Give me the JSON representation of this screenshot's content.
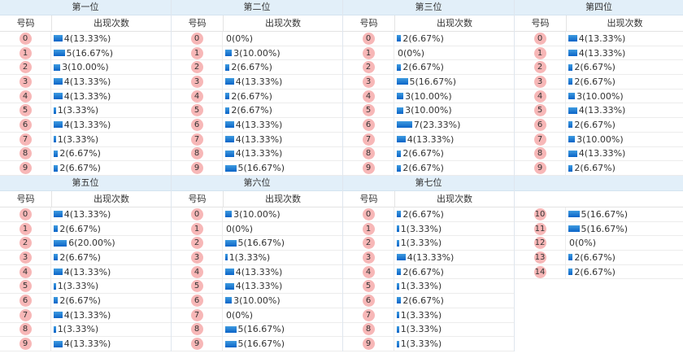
{
  "header": {
    "num_label": "号码",
    "count_label": "出现次数"
  },
  "colors": {
    "ball": "#f7b7b7",
    "bar": "#0a63c7",
    "title_bg": "#e2eff9"
  },
  "panels": [
    {
      "title": "第一位",
      "rows": [
        {
          "num": "0",
          "count": 4,
          "pct": 13.33,
          "text": "4(13.33%)"
        },
        {
          "num": "1",
          "count": 5,
          "pct": 16.67,
          "text": "5(16.67%)"
        },
        {
          "num": "2",
          "count": 3,
          "pct": 10.0,
          "text": "3(10.00%)"
        },
        {
          "num": "3",
          "count": 4,
          "pct": 13.33,
          "text": "4(13.33%)"
        },
        {
          "num": "4",
          "count": 4,
          "pct": 13.33,
          "text": "4(13.33%)"
        },
        {
          "num": "5",
          "count": 1,
          "pct": 3.33,
          "text": "1(3.33%)"
        },
        {
          "num": "6",
          "count": 4,
          "pct": 13.33,
          "text": "4(13.33%)"
        },
        {
          "num": "7",
          "count": 1,
          "pct": 3.33,
          "text": "1(3.33%)"
        },
        {
          "num": "8",
          "count": 2,
          "pct": 6.67,
          "text": "2(6.67%)"
        },
        {
          "num": "9",
          "count": 2,
          "pct": 6.67,
          "text": "2(6.67%)"
        }
      ]
    },
    {
      "title": "第二位",
      "rows": [
        {
          "num": "0",
          "count": 0,
          "pct": 0,
          "text": "0(0%)"
        },
        {
          "num": "1",
          "count": 3,
          "pct": 10.0,
          "text": "3(10.00%)"
        },
        {
          "num": "2",
          "count": 2,
          "pct": 6.67,
          "text": "2(6.67%)"
        },
        {
          "num": "3",
          "count": 4,
          "pct": 13.33,
          "text": "4(13.33%)"
        },
        {
          "num": "4",
          "count": 2,
          "pct": 6.67,
          "text": "2(6.67%)"
        },
        {
          "num": "5",
          "count": 2,
          "pct": 6.67,
          "text": "2(6.67%)"
        },
        {
          "num": "6",
          "count": 4,
          "pct": 13.33,
          "text": "4(13.33%)"
        },
        {
          "num": "7",
          "count": 4,
          "pct": 13.33,
          "text": "4(13.33%)"
        },
        {
          "num": "8",
          "count": 4,
          "pct": 13.33,
          "text": "4(13.33%)"
        },
        {
          "num": "9",
          "count": 5,
          "pct": 16.67,
          "text": "5(16.67%)"
        }
      ]
    },
    {
      "title": "第三位",
      "rows": [
        {
          "num": "0",
          "count": 2,
          "pct": 6.67,
          "text": "2(6.67%)"
        },
        {
          "num": "1",
          "count": 0,
          "pct": 0,
          "text": "0(0%)"
        },
        {
          "num": "2",
          "count": 2,
          "pct": 6.67,
          "text": "2(6.67%)"
        },
        {
          "num": "3",
          "count": 5,
          "pct": 16.67,
          "text": "5(16.67%)"
        },
        {
          "num": "4",
          "count": 3,
          "pct": 10.0,
          "text": "3(10.00%)"
        },
        {
          "num": "5",
          "count": 3,
          "pct": 10.0,
          "text": "3(10.00%)"
        },
        {
          "num": "6",
          "count": 7,
          "pct": 23.33,
          "text": "7(23.33%)"
        },
        {
          "num": "7",
          "count": 4,
          "pct": 13.33,
          "text": "4(13.33%)"
        },
        {
          "num": "8",
          "count": 2,
          "pct": 6.67,
          "text": "2(6.67%)"
        },
        {
          "num": "9",
          "count": 2,
          "pct": 6.67,
          "text": "2(6.67%)"
        }
      ]
    },
    {
      "title": "第四位",
      "rows": [
        {
          "num": "0",
          "count": 4,
          "pct": 13.33,
          "text": "4(13.33%)"
        },
        {
          "num": "1",
          "count": 4,
          "pct": 13.33,
          "text": "4(13.33%)"
        },
        {
          "num": "2",
          "count": 2,
          "pct": 6.67,
          "text": "2(6.67%)"
        },
        {
          "num": "3",
          "count": 2,
          "pct": 6.67,
          "text": "2(6.67%)"
        },
        {
          "num": "4",
          "count": 3,
          "pct": 10.0,
          "text": "3(10.00%)"
        },
        {
          "num": "5",
          "count": 4,
          "pct": 13.33,
          "text": "4(13.33%)"
        },
        {
          "num": "6",
          "count": 2,
          "pct": 6.67,
          "text": "2(6.67%)"
        },
        {
          "num": "7",
          "count": 3,
          "pct": 10.0,
          "text": "3(10.00%)"
        },
        {
          "num": "8",
          "count": 4,
          "pct": 13.33,
          "text": "4(13.33%)"
        },
        {
          "num": "9",
          "count": 2,
          "pct": 6.67,
          "text": "2(6.67%)"
        }
      ]
    },
    {
      "title": "第五位",
      "rows": [
        {
          "num": "0",
          "count": 4,
          "pct": 13.33,
          "text": "4(13.33%)"
        },
        {
          "num": "1",
          "count": 2,
          "pct": 6.67,
          "text": "2(6.67%)"
        },
        {
          "num": "2",
          "count": 6,
          "pct": 20.0,
          "text": "6(20.00%)"
        },
        {
          "num": "3",
          "count": 2,
          "pct": 6.67,
          "text": "2(6.67%)"
        },
        {
          "num": "4",
          "count": 4,
          "pct": 13.33,
          "text": "4(13.33%)"
        },
        {
          "num": "5",
          "count": 1,
          "pct": 3.33,
          "text": "1(3.33%)"
        },
        {
          "num": "6",
          "count": 2,
          "pct": 6.67,
          "text": "2(6.67%)"
        },
        {
          "num": "7",
          "count": 4,
          "pct": 13.33,
          "text": "4(13.33%)"
        },
        {
          "num": "8",
          "count": 1,
          "pct": 3.33,
          "text": "1(3.33%)"
        },
        {
          "num": "9",
          "count": 4,
          "pct": 13.33,
          "text": "4(13.33%)"
        }
      ]
    },
    {
      "title": "第六位",
      "rows": [
        {
          "num": "0",
          "count": 3,
          "pct": 10.0,
          "text": "3(10.00%)"
        },
        {
          "num": "1",
          "count": 0,
          "pct": 0,
          "text": "0(0%)"
        },
        {
          "num": "2",
          "count": 5,
          "pct": 16.67,
          "text": "5(16.67%)"
        },
        {
          "num": "3",
          "count": 1,
          "pct": 3.33,
          "text": "1(3.33%)"
        },
        {
          "num": "4",
          "count": 4,
          "pct": 13.33,
          "text": "4(13.33%)"
        },
        {
          "num": "5",
          "count": 4,
          "pct": 13.33,
          "text": "4(13.33%)"
        },
        {
          "num": "6",
          "count": 3,
          "pct": 10.0,
          "text": "3(10.00%)"
        },
        {
          "num": "7",
          "count": 0,
          "pct": 0,
          "text": "0(0%)"
        },
        {
          "num": "8",
          "count": 5,
          "pct": 16.67,
          "text": "5(16.67%)"
        },
        {
          "num": "9",
          "count": 5,
          "pct": 16.67,
          "text": "5(16.67%)"
        }
      ]
    },
    {
      "title": "第七位",
      "rows": [
        {
          "num": "0",
          "count": 2,
          "pct": 6.67,
          "text": "2(6.67%)"
        },
        {
          "num": "1",
          "count": 1,
          "pct": 3.33,
          "text": "1(3.33%)"
        },
        {
          "num": "2",
          "count": 1,
          "pct": 3.33,
          "text": "1(3.33%)"
        },
        {
          "num": "3",
          "count": 4,
          "pct": 13.33,
          "text": "4(13.33%)"
        },
        {
          "num": "4",
          "count": 2,
          "pct": 6.67,
          "text": "2(6.67%)"
        },
        {
          "num": "5",
          "count": 1,
          "pct": 3.33,
          "text": "1(3.33%)"
        },
        {
          "num": "6",
          "count": 2,
          "pct": 6.67,
          "text": "2(6.67%)"
        },
        {
          "num": "7",
          "count": 1,
          "pct": 3.33,
          "text": "1(3.33%)"
        },
        {
          "num": "8",
          "count": 1,
          "pct": 3.33,
          "text": "1(3.33%)"
        },
        {
          "num": "9",
          "count": 1,
          "pct": 3.33,
          "text": "1(3.33%)"
        }
      ]
    },
    {
      "title": "",
      "rows": [
        {
          "num": "10",
          "count": 5,
          "pct": 16.67,
          "text": "5(16.67%)"
        },
        {
          "num": "11",
          "count": 5,
          "pct": 16.67,
          "text": "5(16.67%)"
        },
        {
          "num": "12",
          "count": 0,
          "pct": 0,
          "text": "0(0%)"
        },
        {
          "num": "13",
          "count": 2,
          "pct": 6.67,
          "text": "2(6.67%)"
        },
        {
          "num": "14",
          "count": 2,
          "pct": 6.67,
          "text": "2(6.67%)"
        }
      ]
    }
  ]
}
